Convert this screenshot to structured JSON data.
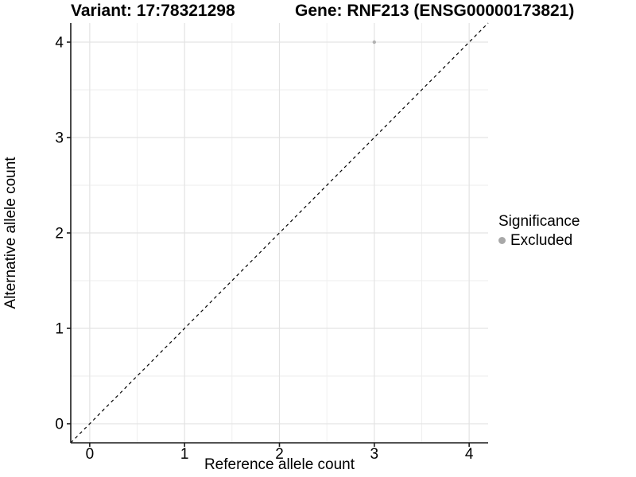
{
  "header": {
    "variant_title": "Variant: 17:78321298",
    "gene_title": "Gene: RNF213 (ENSG00000173821)"
  },
  "legend": {
    "title": "Significance",
    "items": [
      {
        "label": "Excluded",
        "color": "#a8a8a8"
      }
    ]
  },
  "chart_data": {
    "type": "scatter",
    "title_left": "Variant: 17:78321298",
    "title_right": "Gene: RNF213 (ENSG00000173821)",
    "xlabel": "Reference allele count",
    "ylabel": "Alternative allele count",
    "xlim": [
      -0.2,
      4.2
    ],
    "ylim": [
      -0.2,
      4.2
    ],
    "xticks": [
      0,
      1,
      2,
      3,
      4
    ],
    "yticks": [
      0,
      1,
      2,
      3,
      4
    ],
    "minor_ticks": [
      0.5,
      1.5,
      2.5,
      3.5
    ],
    "grid": true,
    "legend_position": "right",
    "series": [
      {
        "name": "Excluded",
        "color": "#b2b2b2",
        "points": [
          {
            "x": 3,
            "y": 4
          }
        ]
      }
    ],
    "reference_line": {
      "type": "identity",
      "slope": 1,
      "intercept": 0,
      "linestyle": "dashed",
      "color": "#000000"
    },
    "colors": {
      "grid_major": "#e3e3e3",
      "grid_minor": "#eeeeee",
      "axis_line": "#1a1a1a",
      "tick_text": "#000000"
    }
  }
}
